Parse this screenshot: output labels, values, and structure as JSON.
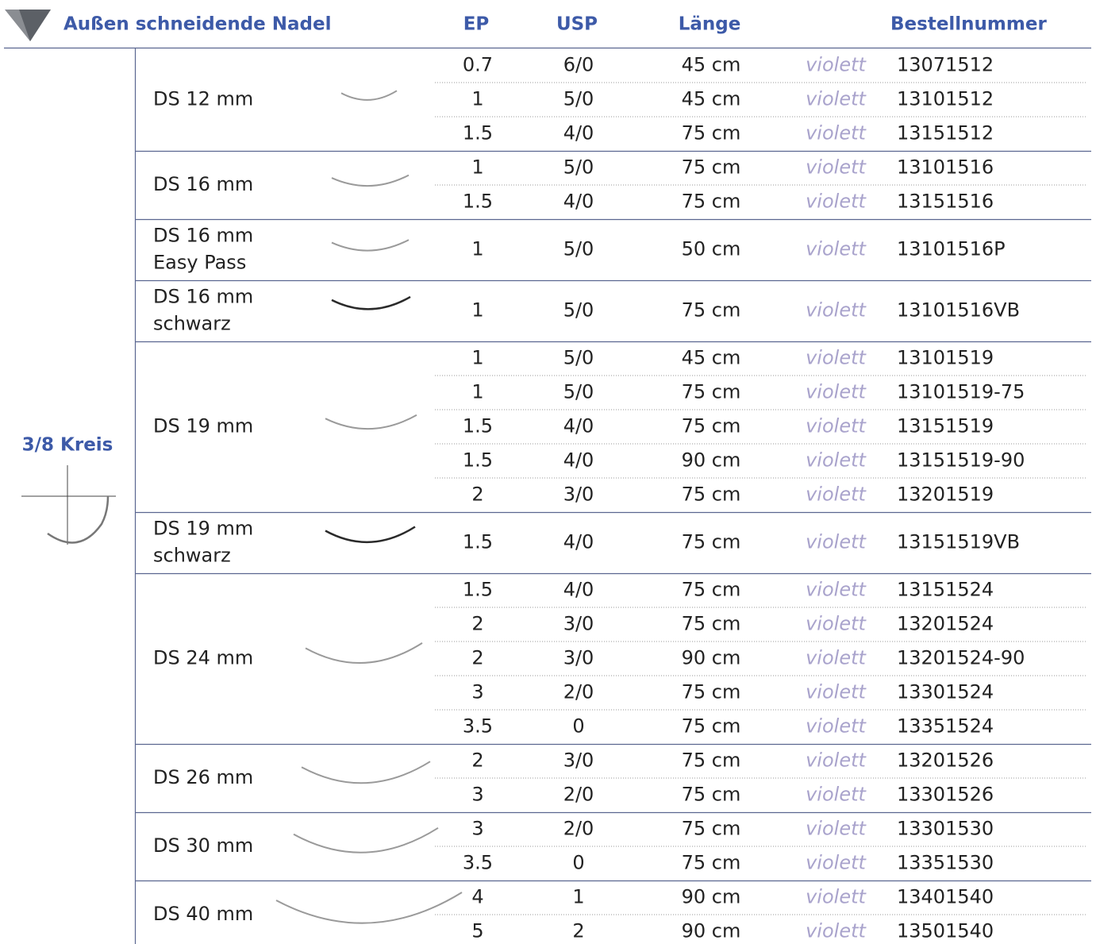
{
  "header": {
    "title": "Außen schneidende Nadel",
    "columns": [
      "EP",
      "USP",
      "Länge",
      "Bestellnummer"
    ]
  },
  "side_label": "3/8 Kreis",
  "groups": [
    {
      "name": [
        "DS 12 mm"
      ],
      "rows": [
        [
          "0.7",
          "6/0",
          "45 cm",
          "violett",
          "13071512"
        ],
        [
          "1",
          "5/0",
          "45 cm",
          "violett",
          "13101512"
        ],
        [
          "1.5",
          "4/0",
          "75 cm",
          "violett",
          "13151512"
        ]
      ]
    },
    {
      "name": [
        "DS 16 mm"
      ],
      "rows": [
        [
          "1",
          "5/0",
          "75 cm",
          "violett",
          "13101516"
        ],
        [
          "1.5",
          "4/0",
          "75 cm",
          "violett",
          "13151516"
        ]
      ]
    },
    {
      "name": [
        "DS 16 mm",
        "Easy Pass"
      ],
      "rows": [
        [
          "1",
          "5/0",
          "50 cm",
          "violett",
          "13101516P"
        ]
      ]
    },
    {
      "name": [
        "DS 16 mm",
        "schwarz"
      ],
      "rows": [
        [
          "1",
          "5/0",
          "75 cm",
          "violett",
          "13101516VB"
        ]
      ]
    },
    {
      "name": [
        "DS 19 mm"
      ],
      "rows": [
        [
          "1",
          "5/0",
          "45 cm",
          "violett",
          "13101519"
        ],
        [
          "1",
          "5/0",
          "75 cm",
          "violett",
          "13101519-75"
        ],
        [
          "1.5",
          "4/0",
          "75 cm",
          "violett",
          "13151519"
        ],
        [
          "1.5",
          "4/0",
          "90 cm",
          "violett",
          "13151519-90"
        ],
        [
          "2",
          "3/0",
          "75 cm",
          "violett",
          "13201519"
        ]
      ]
    },
    {
      "name": [
        "DS 19 mm",
        "schwarz"
      ],
      "rows": [
        [
          "1.5",
          "4/0",
          "75 cm",
          "violett",
          "13151519VB"
        ]
      ]
    },
    {
      "name": [
        "DS 24 mm"
      ],
      "rows": [
        [
          "1.5",
          "4/0",
          "75 cm",
          "violett",
          "13151524"
        ],
        [
          "2",
          "3/0",
          "75 cm",
          "violett",
          "13201524"
        ],
        [
          "2",
          "3/0",
          "90 cm",
          "violett",
          "13201524-90"
        ],
        [
          "3",
          "2/0",
          "75 cm",
          "violett",
          "13301524"
        ],
        [
          "3.5",
          "0",
          "75 cm",
          "violett",
          "13351524"
        ]
      ]
    },
    {
      "name": [
        "DS 26 mm"
      ],
      "rows": [
        [
          "2",
          "3/0",
          "75 cm",
          "violett",
          "13201526"
        ],
        [
          "3",
          "2/0",
          "75 cm",
          "violett",
          "13301526"
        ]
      ]
    },
    {
      "name": [
        "DS 30 mm"
      ],
      "rows": [
        [
          "3",
          "2/0",
          "75 cm",
          "violett",
          "13301530"
        ],
        [
          "3.5",
          "0",
          "75 cm",
          "violett",
          "13351530"
        ]
      ]
    },
    {
      "name": [
        "DS 40 mm"
      ],
      "rows": [
        [
          "4",
          "1",
          "90 cm",
          "violett",
          "13401540"
        ],
        [
          "5",
          "2",
          "90 cm",
          "violett",
          "13501540"
        ]
      ]
    }
  ]
}
